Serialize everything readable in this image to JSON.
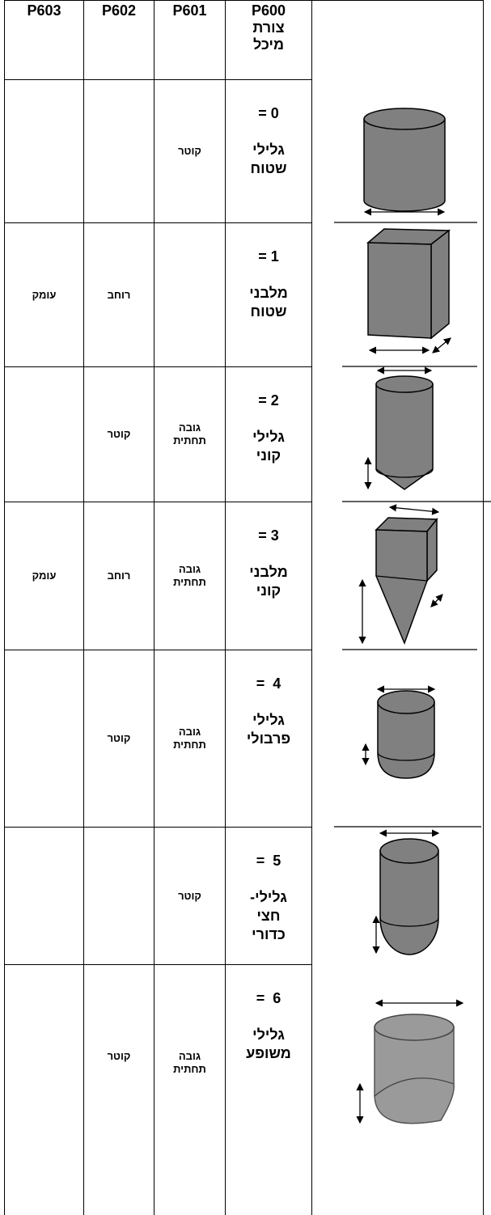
{
  "table": {
    "header": {
      "p603": "P603",
      "p602": "P602",
      "p601": "P601",
      "p600": "P600",
      "p600_label": "צורת מיכל"
    },
    "rows": [
      {
        "p601": "קוטר",
        "value": "= 0",
        "shape": "גלילי שטוח"
      },
      {
        "p603": "עומק",
        "p602": "רוחב",
        "value": "= 1",
        "shape": "מלבני שטוח"
      },
      {
        "p602": "קוטר",
        "p601": "גובה תחתית",
        "value": "= 2",
        "shape": "גלילי קוני"
      },
      {
        "p603": "עומק",
        "p602": "רוחב",
        "p601": "גובה תחתית",
        "value": "= 3",
        "shape": "מלבני קוני"
      },
      {
        "p602": "קוטר",
        "p601": "גובה תחתית",
        "value": "=  4",
        "shape": "גלילי פרבולי"
      },
      {
        "p601": "קוטר",
        "value": "=  5",
        "shape": "גלילי- חצי כדורי"
      },
      {
        "p602": "קוטר",
        "p601": "גובה תחתית",
        "value": "=  6",
        "shape": "גלילי משופע"
      }
    ]
  }
}
